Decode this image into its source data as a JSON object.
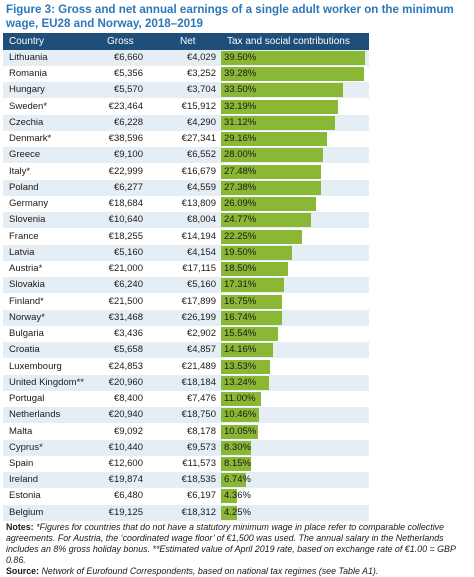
{
  "figure": {
    "title": "Figure 3: Gross and net annual earnings of a single adult worker on the minimum wage, EU28 and Norway, 2018–2019"
  },
  "table": {
    "headers": [
      "Country",
      "Gross",
      "Net",
      "Tax and social contributions"
    ]
  },
  "chart_data": {
    "type": "table",
    "columns": [
      "Country",
      "Gross",
      "Net",
      "Tax and social contributions"
    ],
    "rows": [
      {
        "country": "Lithuania",
        "gross": "€6,660",
        "net": "€4,029",
        "tax": "39.50%",
        "value": 39.5
      },
      {
        "country": "Romania",
        "gross": "€5,356",
        "net": "€3,252",
        "tax": "39.28%",
        "value": 39.28
      },
      {
        "country": "Hungary",
        "gross": "€5,570",
        "net": "€3,704",
        "tax": "33.50%",
        "value": 33.5
      },
      {
        "country": "Sweden*",
        "gross": "€23,464",
        "net": "€15,912",
        "tax": "32.19%",
        "value": 32.19
      },
      {
        "country": "Czechia",
        "gross": "€6,228",
        "net": "€4,290",
        "tax": "31.12%",
        "value": 31.12
      },
      {
        "country": "Denmark*",
        "gross": "€38,596",
        "net": "€27,341",
        "tax": "29.16%",
        "value": 29.16
      },
      {
        "country": "Greece",
        "gross": "€9,100",
        "net": "€6,552",
        "tax": "28.00%",
        "value": 28.0
      },
      {
        "country": "Italy*",
        "gross": "€22,999",
        "net": "€16,679",
        "tax": "27.48%",
        "value": 27.48
      },
      {
        "country": "Poland",
        "gross": "€6,277",
        "net": "€4,559",
        "tax": "27.38%",
        "value": 27.38
      },
      {
        "country": "Germany",
        "gross": "€18,684",
        "net": "€13,809",
        "tax": "26.09%",
        "value": 26.09
      },
      {
        "country": "Slovenia",
        "gross": "€10,640",
        "net": "€8,004",
        "tax": "24.77%",
        "value": 24.77
      },
      {
        "country": "France",
        "gross": "€18,255",
        "net": "€14,194",
        "tax": "22.25%",
        "value": 22.25
      },
      {
        "country": "Latvia",
        "gross": "€5,160",
        "net": "€4,154",
        "tax": "19.50%",
        "value": 19.5
      },
      {
        "country": "Austria*",
        "gross": "€21,000",
        "net": "€17,115",
        "tax": "18.50%",
        "value": 18.5
      },
      {
        "country": "Slovakia",
        "gross": "€6,240",
        "net": "€5,160",
        "tax": "17.31%",
        "value": 17.31
      },
      {
        "country": "Finland*",
        "gross": "€21,500",
        "net": "€17,899",
        "tax": "16.75%",
        "value": 16.75
      },
      {
        "country": "Norway*",
        "gross": "€31,468",
        "net": "€26,199",
        "tax": "16.74%",
        "value": 16.74
      },
      {
        "country": "Bulgaria",
        "gross": "€3,436",
        "net": "€2,902",
        "tax": "15.54%",
        "value": 15.54
      },
      {
        "country": "Croatia",
        "gross": "€5,658",
        "net": "€4,857",
        "tax": "14.16%",
        "value": 14.16
      },
      {
        "country": "Luxembourg",
        "gross": "€24,853",
        "net": "€21,489",
        "tax": "13.53%",
        "value": 13.53
      },
      {
        "country": "United Kingdom**",
        "gross": "€20,960",
        "net": "€18,184",
        "tax": "13.24%",
        "value": 13.24
      },
      {
        "country": "Portugal",
        "gross": "€8,400",
        "net": "€7,476",
        "tax": "11.00%",
        "value": 11.0
      },
      {
        "country": "Netherlands",
        "gross": "€20,940",
        "net": "€18,750",
        "tax": "10.46%",
        "value": 10.46
      },
      {
        "country": "Malta",
        "gross": "€9,092",
        "net": "€8,178",
        "tax": "10.05%",
        "value": 10.05
      },
      {
        "country": "Cyprus*",
        "gross": "€10,440",
        "net": "€9,573",
        "tax": "8.30%",
        "value": 8.3
      },
      {
        "country": "Spain",
        "gross": "€12,600",
        "net": "€11,573",
        "tax": "8.15%",
        "value": 8.15
      },
      {
        "country": "Ireland",
        "gross": "€19,874",
        "net": "€18,535",
        "tax": "6.74%",
        "value": 6.74
      },
      {
        "country": "Estonia",
        "gross": "€6,480",
        "net": "€6,197",
        "tax": "4.36%",
        "value": 4.36
      },
      {
        "country": "Belgium",
        "gross": "€19,125",
        "net": "€18,312",
        "tax": "4.25%",
        "value": 4.25
      }
    ],
    "bar_max": 39.5,
    "colors": {
      "header": "#1f4e79",
      "bar": "#8ab734",
      "stripe": "#e6eef5",
      "title": "#2b78b9"
    }
  },
  "notes": {
    "label": "Notes:",
    "text": "*Figures for countries that do not have a statutory minimum wage in place refer to comparable collective agreements. For Austria, the ‘coordinated wage floor’ of €1,500 was used. The annual salary in the Netherlands includes an 8% gross holiday bonus. **Estimated value of April 2019 rate, based on exchange rate of €1.00 = GBP 0.86.",
    "source_label": "Source:",
    "source_text": "Network of Eurofound Correspondents, based on national tax regimes (see Table A1)."
  }
}
